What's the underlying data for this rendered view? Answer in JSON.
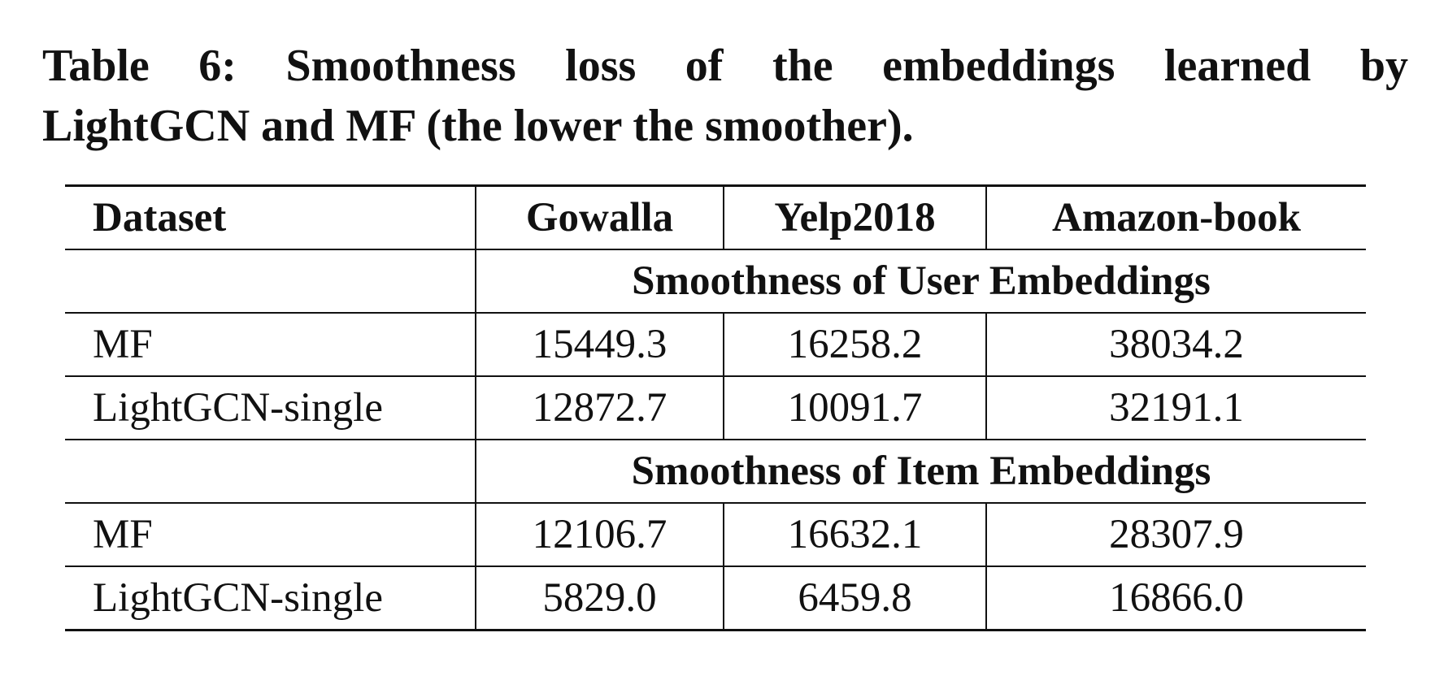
{
  "caption": {
    "line1": "Table 6: Smoothness loss of the embeddings learned by",
    "line2": "LightGCN and MF (the lower the smoother)."
  },
  "table": {
    "headers": [
      "Dataset",
      "Gowalla",
      "Yelp2018",
      "Amazon-book"
    ],
    "sections": [
      {
        "title": "Smoothness of User Embeddings",
        "rows": [
          {
            "label": "MF",
            "values": [
              "15449.3",
              "16258.2",
              "38034.2"
            ]
          },
          {
            "label": "LightGCN-single",
            "values": [
              "12872.7",
              "10091.7",
              "32191.1"
            ]
          }
        ]
      },
      {
        "title": "Smoothness of Item Embeddings",
        "rows": [
          {
            "label": "MF",
            "values": [
              "12106.7",
              "16632.1",
              "28307.9"
            ]
          },
          {
            "label": "LightGCN-single",
            "values": [
              "5829.0",
              "6459.8",
              "16866.0"
            ]
          }
        ]
      }
    ]
  }
}
